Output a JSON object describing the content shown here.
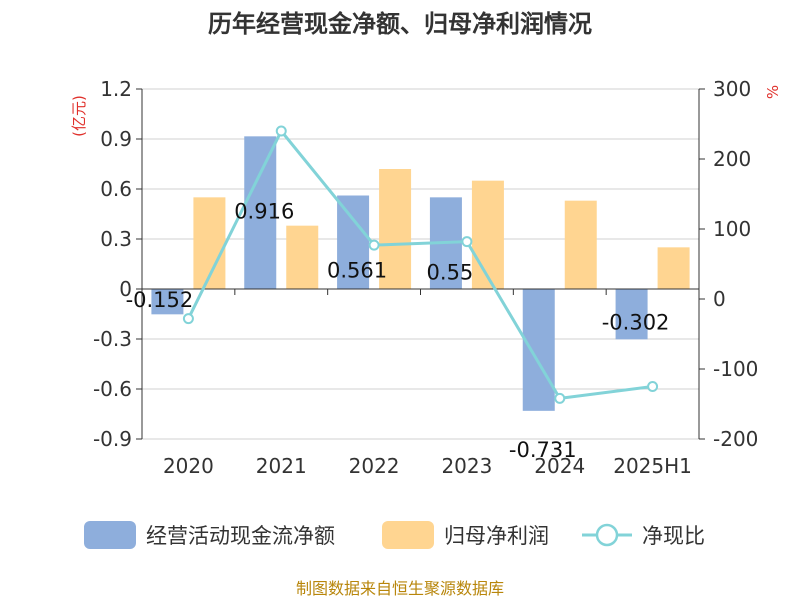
{
  "chart_data": {
    "type": "bar",
    "title": "历年经营现金净额、归母净利润情况",
    "categories": [
      "2020",
      "2021",
      "2022",
      "2023",
      "2024",
      "2025H1"
    ],
    "series": [
      {
        "name": "经营活动现金流净额",
        "type": "bar",
        "axis": "left",
        "color": "#8eaedc",
        "values": [
          -0.152,
          0.916,
          0.561,
          0.55,
          -0.731,
          -0.302
        ],
        "labels": [
          "-0.152",
          "0.916",
          "0.561",
          "0.55",
          "-0.731",
          "-0.302"
        ]
      },
      {
        "name": "归母净利润",
        "type": "bar",
        "axis": "left",
        "color": "#ffd591",
        "values": [
          0.55,
          0.38,
          0.72,
          0.65,
          0.53,
          0.25
        ]
      },
      {
        "name": "净现比",
        "type": "line",
        "axis": "right",
        "color": "#82d3d8",
        "values": [
          -28,
          240,
          77,
          82,
          -142,
          -125
        ]
      }
    ],
    "yleft": {
      "unit": "(亿元)",
      "ylim": [
        -0.9,
        1.2
      ],
      "ticks": [
        "1.2",
        "0.9",
        "0.6",
        "0.3",
        "0",
        "-0.3",
        "-0.6",
        "-0.9"
      ]
    },
    "yright": {
      "unit": "%",
      "ylim": [
        -200,
        300
      ],
      "ticks": [
        "300",
        "200",
        "100",
        "0",
        "-100",
        "-200"
      ]
    },
    "grid": true,
    "legend_position": "bottom"
  },
  "source": "制图数据来自恒生聚源数据库"
}
